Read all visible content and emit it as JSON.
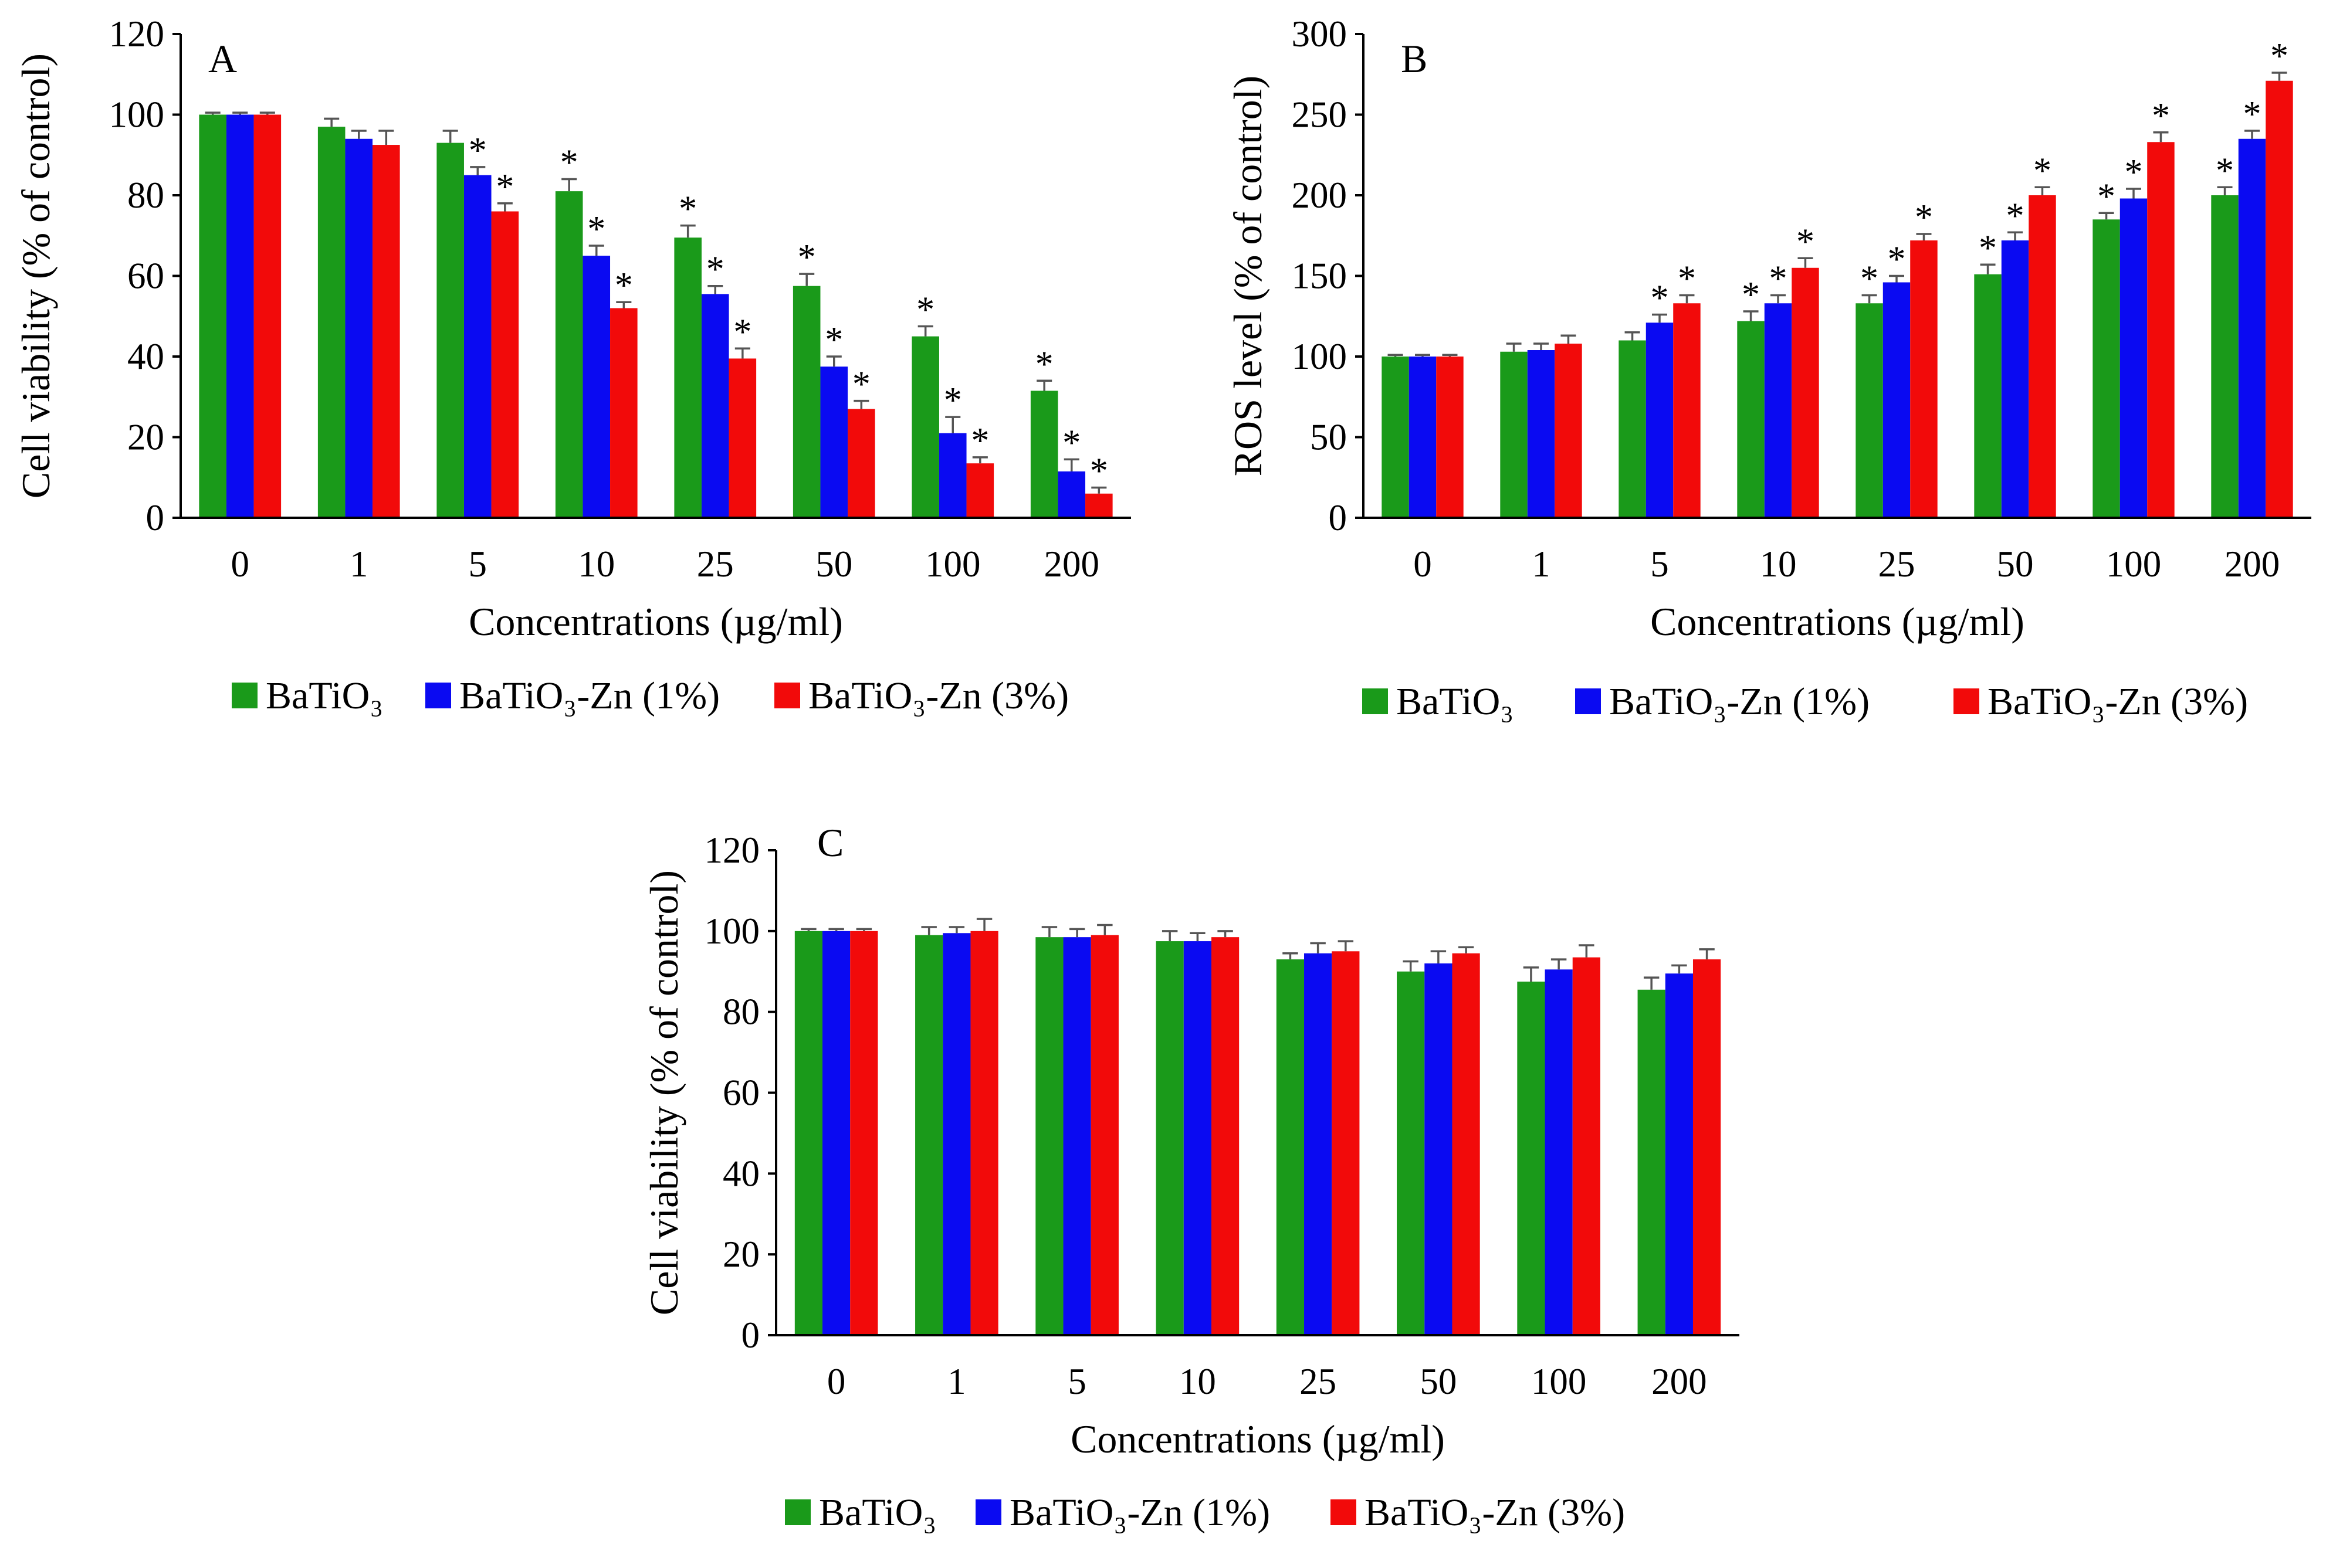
{
  "legend_entries": [
    {
      "label": "BaTiO₃",
      "color": "#1a9a1a"
    },
    {
      "label": "BaTiO₃-Zn (1%)",
      "color": "#0a0af2"
    },
    {
      "label": "BaTiO₃-Zn (3%)",
      "color": "#f20a0a"
    }
  ],
  "chart_data": [
    {
      "type": "bar",
      "panel": "A",
      "title": "",
      "xlabel": "Concentrations (µg/ml)",
      "ylabel": "Cell viability (% of control)",
      "ylim": [
        0,
        120
      ],
      "yticks": [
        0,
        20,
        40,
        60,
        80,
        100,
        120
      ],
      "categories": [
        "0",
        "1",
        "5",
        "10",
        "25",
        "50",
        "100",
        "200"
      ],
      "series": [
        {
          "name": "BaTiO₃",
          "color": "#1a9a1a",
          "values": [
            100,
            97,
            93,
            81,
            69.5,
            57.5,
            45,
            31.5
          ],
          "errors": [
            0.5,
            2,
            3,
            3,
            3,
            3,
            2.5,
            2.5
          ],
          "significant": [
            false,
            false,
            false,
            true,
            true,
            true,
            true,
            true
          ]
        },
        {
          "name": "BaTiO₃-Zn (1%)",
          "color": "#0a0af2",
          "values": [
            100,
            94,
            85,
            65,
            55.5,
            37.5,
            21,
            11.5
          ],
          "errors": [
            0.5,
            2,
            2,
            2.5,
            2,
            2.5,
            4,
            3
          ],
          "significant": [
            false,
            false,
            true,
            true,
            true,
            true,
            true,
            true
          ]
        },
        {
          "name": "BaTiO₃-Zn (3%)",
          "color": "#f20a0a",
          "values": [
            100,
            92.5,
            76,
            52,
            39.5,
            27,
            13.5,
            6
          ],
          "errors": [
            0.5,
            3.5,
            2,
            1.5,
            2.5,
            2,
            1.5,
            1.5
          ],
          "significant": [
            false,
            false,
            true,
            true,
            true,
            true,
            true,
            true
          ]
        }
      ]
    },
    {
      "type": "bar",
      "panel": "B",
      "title": "",
      "xlabel": "Concentrations (µg/ml)",
      "ylabel": "ROS level (% of control)",
      "ylim": [
        0,
        300
      ],
      "yticks": [
        0,
        50,
        100,
        150,
        200,
        250,
        300
      ],
      "categories": [
        "0",
        "1",
        "5",
        "10",
        "25",
        "50",
        "100",
        "200"
      ],
      "series": [
        {
          "name": "BaTiO₃",
          "color": "#1a9a1a",
          "values": [
            100,
            103,
            110,
            122,
            133,
            151,
            185,
            200
          ],
          "errors": [
            1,
            5,
            5,
            6,
            5,
            6,
            4,
            5
          ],
          "significant": [
            false,
            false,
            false,
            true,
            true,
            true,
            true,
            true
          ]
        },
        {
          "name": "BaTiO₃-Zn (1%)",
          "color": "#0a0af2",
          "values": [
            100,
            104,
            121,
            133,
            146,
            172,
            198,
            235
          ],
          "errors": [
            1,
            4,
            5,
            5,
            4,
            5,
            6,
            5
          ],
          "significant": [
            false,
            false,
            true,
            true,
            true,
            true,
            true,
            true
          ]
        },
        {
          "name": "BaTiO₃-Zn (3%)",
          "color": "#f20a0a",
          "values": [
            100,
            108,
            133,
            155,
            172,
            200,
            233,
            271
          ],
          "errors": [
            1,
            5,
            5,
            6,
            4,
            5,
            6,
            5
          ],
          "significant": [
            false,
            false,
            true,
            true,
            true,
            true,
            true,
            true
          ]
        }
      ]
    },
    {
      "type": "bar",
      "panel": "C",
      "title": "",
      "xlabel": "Concentrations (µg/ml)",
      "ylabel": "Cell viability (% of control)",
      "ylim": [
        0,
        120
      ],
      "yticks": [
        0,
        20,
        40,
        60,
        80,
        100,
        120
      ],
      "categories": [
        "0",
        "1",
        "5",
        "10",
        "25",
        "50",
        "100",
        "200"
      ],
      "series": [
        {
          "name": "BaTiO₃",
          "color": "#1a9a1a",
          "values": [
            100,
            99,
            98.5,
            97.5,
            93,
            90,
            87.5,
            85.5
          ],
          "errors": [
            0.5,
            2,
            2.5,
            2.5,
            1.5,
            2.5,
            3.5,
            3
          ],
          "significant": [
            false,
            false,
            false,
            false,
            false,
            false,
            false,
            false
          ]
        },
        {
          "name": "BaTiO₃-Zn (1%)",
          "color": "#0a0af2",
          "values": [
            100,
            99.5,
            98.5,
            97.5,
            94.5,
            92,
            90.5,
            89.5
          ],
          "errors": [
            0.5,
            1.5,
            2,
            2,
            2.5,
            3,
            2.5,
            2
          ],
          "significant": [
            false,
            false,
            false,
            false,
            false,
            false,
            false,
            false
          ]
        },
        {
          "name": "BaTiO₃-Zn (3%)",
          "color": "#f20a0a",
          "values": [
            100,
            100,
            99,
            98.5,
            95,
            94.5,
            93.5,
            93
          ],
          "errors": [
            0.5,
            3,
            2.5,
            1.5,
            2.5,
            1.5,
            3,
            2.5
          ],
          "significant": [
            false,
            false,
            false,
            false,
            false,
            false,
            false,
            false
          ]
        }
      ]
    }
  ]
}
